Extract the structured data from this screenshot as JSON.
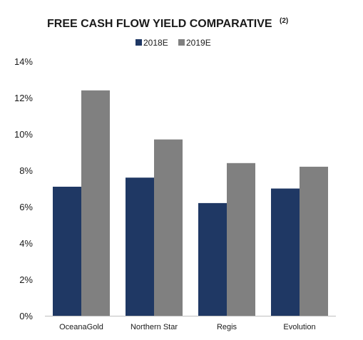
{
  "chart_data": {
    "type": "bar",
    "title": "FREE CASH FLOW YIELD COMPARATIVE",
    "title_superscript": "(2)",
    "categories": [
      "OceanaGold",
      "Northern Star",
      "Regis",
      "Evolution"
    ],
    "series": [
      {
        "name": "2018E",
        "values": [
          7.1,
          7.6,
          6.2,
          7.0
        ],
        "color": "#1f3864"
      },
      {
        "name": "2019E",
        "values": [
          12.4,
          9.7,
          8.4,
          8.2
        ],
        "color": "#808080"
      }
    ],
    "ylim": [
      0,
      14
    ],
    "yticks": [
      "0%",
      "2%",
      "4%",
      "6%",
      "8%",
      "10%",
      "12%",
      "14%"
    ],
    "ytick_values": [
      0,
      2,
      4,
      6,
      8,
      10,
      12,
      14
    ],
    "grid": false,
    "legend_position": "top-center",
    "axis_color": "#bfbfbf"
  }
}
